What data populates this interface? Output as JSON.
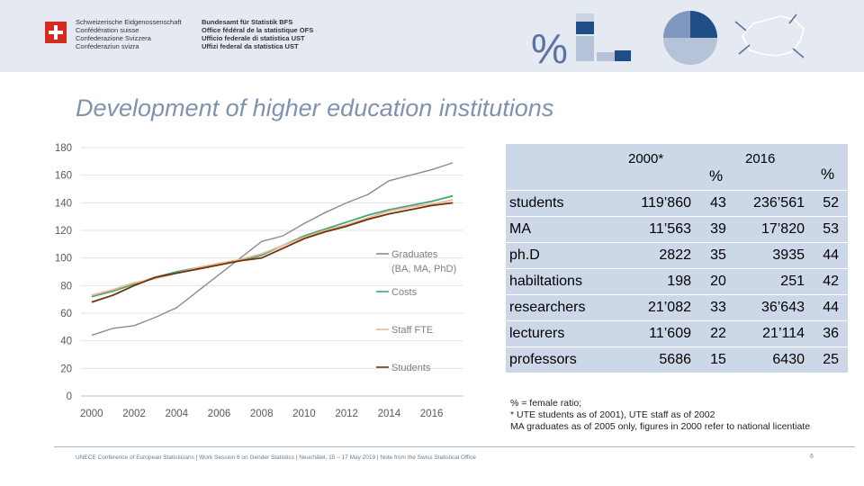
{
  "header": {
    "confederation_lines": [
      "Schweizerische Eidgenossenschaft",
      "Confédération suisse",
      "Confederazione Svizzera",
      "Confederaziun svizra"
    ],
    "office_lines": [
      "Bundesamt für Statistik BFS",
      "Office fédéral de la statistique OFS",
      "Ufficio federale di statistica UST",
      "Uffizi federal da statistica UST"
    ],
    "percent_glyph": "%"
  },
  "slide_title": "Development of higher education institutions",
  "chart_data": {
    "type": "line",
    "x": [
      2000,
      2001,
      2002,
      2003,
      2004,
      2005,
      2006,
      2007,
      2008,
      2009,
      2010,
      2011,
      2012,
      2013,
      2014,
      2015,
      2016,
      2017
    ],
    "x_tick_labels": [
      "2000",
      "2002",
      "2004",
      "2006",
      "2008",
      "2010",
      "2012",
      "2014",
      "2016"
    ],
    "y_tick_labels": [
      "0",
      "20",
      "40",
      "60",
      "80",
      "100",
      "120",
      "140",
      "160",
      "180"
    ],
    "ylim": [
      0,
      180
    ],
    "xlim": [
      1999.5,
      2017.5
    ],
    "grid": true,
    "legend_position": "inside-right",
    "series": [
      {
        "name": "Graduates (BA, MA, PhD)",
        "legend_lines": [
          "Graduates",
          "(BA, MA, PhD)"
        ],
        "color": "#8c8c8c",
        "values": [
          44,
          49,
          51,
          57,
          64,
          76,
          88,
          100,
          112,
          116,
          125,
          133,
          140,
          146,
          156,
          160,
          164,
          169
        ]
      },
      {
        "name": "Costs",
        "legend_lines": [
          "Costs"
        ],
        "color": "#3fa87a",
        "values": [
          72,
          76,
          81,
          86,
          90,
          93,
          96,
          98,
          102,
          109,
          116,
          121,
          126,
          131,
          135,
          138,
          141,
          145
        ]
      },
      {
        "name": "Staff FTE",
        "legend_lines": [
          "Staff FTE"
        ],
        "color": "#f2b48e",
        "values": [
          73,
          77,
          82,
          85,
          89,
          93,
          96,
          99,
          103,
          109,
          115,
          120,
          124,
          129,
          134,
          137,
          139,
          142
        ]
      },
      {
        "name": "Students",
        "legend_lines": [
          "Students"
        ],
        "color": "#6b3411",
        "values": [
          68,
          73,
          80,
          86,
          89,
          92,
          95,
          98,
          100,
          107,
          114,
          119,
          123,
          128,
          132,
          135,
          138,
          140
        ]
      }
    ]
  },
  "table": {
    "header": {
      "year1": "2000*",
      "pct1": "%",
      "year2": "2016",
      "pct2": "%"
    },
    "rows": [
      {
        "label": "students",
        "v2000": "119’860",
        "p2000": "43",
        "v2016": "236’561",
        "p2016": "52"
      },
      {
        "label": "MA",
        "v2000": "11’563",
        "p2000": "39",
        "v2016": "17’820",
        "p2016": "53"
      },
      {
        "label": "ph.D",
        "v2000": "2822",
        "p2000": "35",
        "v2016": "3935",
        "p2016": "44"
      },
      {
        "label": "habiltations",
        "v2000": "198",
        "p2000": "20",
        "v2016": "251",
        "p2016": "42"
      },
      {
        "label": "researchers",
        "v2000": "21’082",
        "p2000": "33",
        "v2016": "36’643",
        "p2016": "44"
      },
      {
        "label": "lecturers",
        "v2000": "11’609",
        "p2000": "22",
        "v2016": "21’114",
        "p2016": "36"
      },
      {
        "label": "professors",
        "v2000": "5686",
        "p2000": "15",
        "v2016": "6430",
        "p2016": "25"
      }
    ]
  },
  "notes": [
    "% = female ratio;",
    "* UTE students as of 2001), UTE staff as of 2002",
    "MA graduates as of 2005 only, figures in 2000 refer to national licentiate"
  ],
  "footer": "UNECE Conference of European Statisticians | Work Session 6 on Gender Statistics | Neuchâtel, 15 – 17 May 2019 | Note from the Swiss Statistical Office",
  "page_number": "6",
  "colors": {
    "title": "#7f93b1",
    "header_bg": "#e4e9f2",
    "table_bg": "#ccd7e8",
    "flag": "#d52b1e"
  }
}
